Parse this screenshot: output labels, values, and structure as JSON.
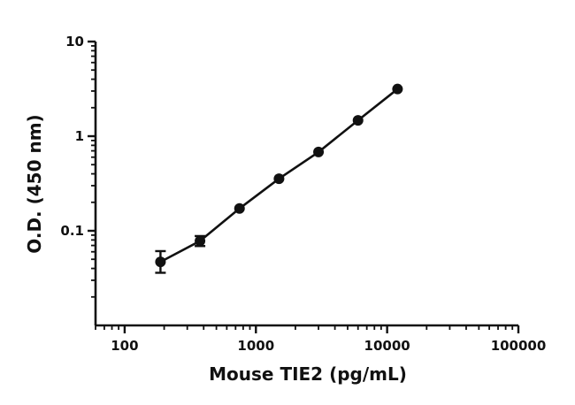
{
  "chart_data": {
    "type": "scatter",
    "x_scale": "log",
    "y_scale": "log",
    "xlabel": "Mouse TIE2 (pg/mL)",
    "ylabel": "O.D. (450 nm)",
    "xlim": [
      60,
      100000
    ],
    "ylim": [
      0.01,
      10
    ],
    "x_ticks": [
      100,
      1000,
      10000,
      100000
    ],
    "x_tick_labels": [
      "100",
      "1000",
      "10000",
      "100000"
    ],
    "y_ticks": [
      0.1,
      1,
      10
    ],
    "y_tick_labels": [
      "0.1",
      "1",
      "10"
    ],
    "grid": false,
    "legend": "none",
    "series": [
      {
        "points": [
          {
            "x": 187.5,
            "y": 0.047,
            "err_low": 0.036,
            "err_high": 0.061
          },
          {
            "x": 375,
            "y": 0.078,
            "err_low": 0.069,
            "err_high": 0.088
          },
          {
            "x": 750,
            "y": 0.172
          },
          {
            "x": 1500,
            "y": 0.355
          },
          {
            "x": 3000,
            "y": 0.68
          },
          {
            "x": 6000,
            "y": 1.47
          },
          {
            "x": 12000,
            "y": 3.15
          }
        ],
        "fit_line": true
      }
    ],
    "colors": {
      "marker": "#111111",
      "line": "#111111"
    }
  }
}
